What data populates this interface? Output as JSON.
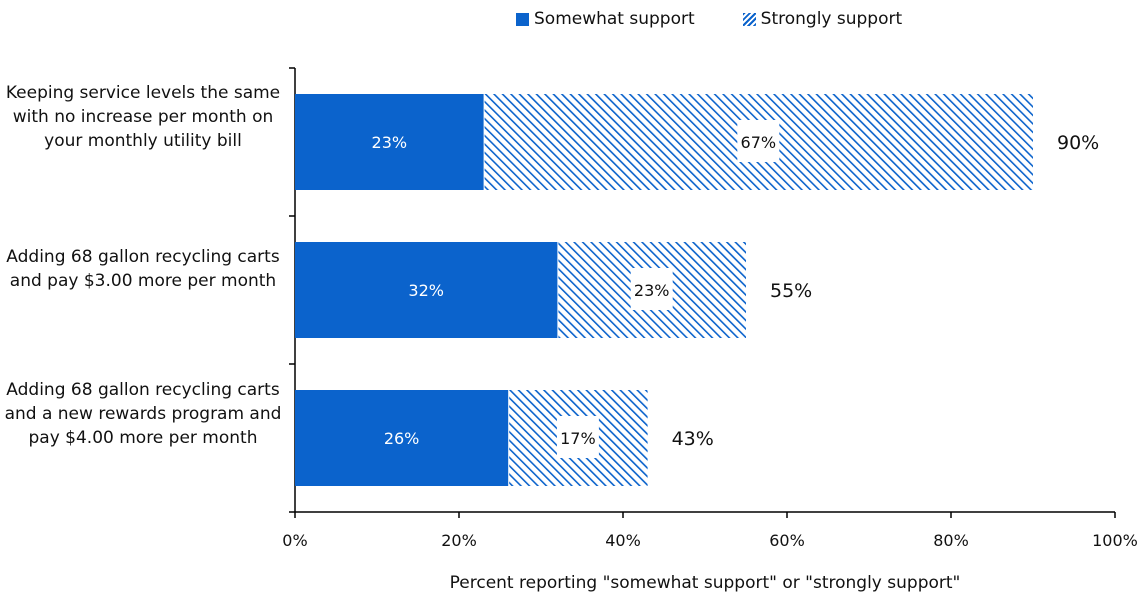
{
  "colors": {
    "series1": "#0b63cc",
    "series2_hatch": "#0b63cc",
    "text": "#111111"
  },
  "legend": [
    {
      "name": "Somewhat support",
      "icon": "solid-swatch"
    },
    {
      "name": "Strongly support",
      "icon": "hatched-swatch"
    }
  ],
  "chart_data": {
    "type": "bar",
    "orientation": "horizontal",
    "stacked": true,
    "categories": [
      "Keeping service levels the same with no increase per month on your monthly utility bill",
      "Adding 68 gallon recycling carts and pay $3.00 more per month",
      "Adding 68 gallon recycling carts and a new rewards program and pay $4.00 more per month"
    ],
    "series": [
      {
        "name": "Somewhat support",
        "values": [
          23,
          32,
          26
        ],
        "labels": [
          "23%",
          "32%",
          "26%"
        ]
      },
      {
        "name": "Strongly support",
        "values": [
          67,
          23,
          17
        ],
        "labels": [
          "67%",
          "23%",
          "17%"
        ]
      }
    ],
    "totals": [
      90,
      55,
      43
    ],
    "total_labels": [
      "90%",
      "55%",
      "43%"
    ],
    "xlabel": "Percent reporting \"somewhat support\" or \"strongly support\"",
    "ylabel": "",
    "xlim": [
      0,
      100
    ],
    "x_ticks": [
      0,
      20,
      40,
      60,
      80,
      100
    ],
    "x_tick_labels": [
      "0%",
      "20%",
      "40%",
      "60%",
      "80%",
      "100%"
    ],
    "grid": false,
    "legend_position": "top"
  }
}
